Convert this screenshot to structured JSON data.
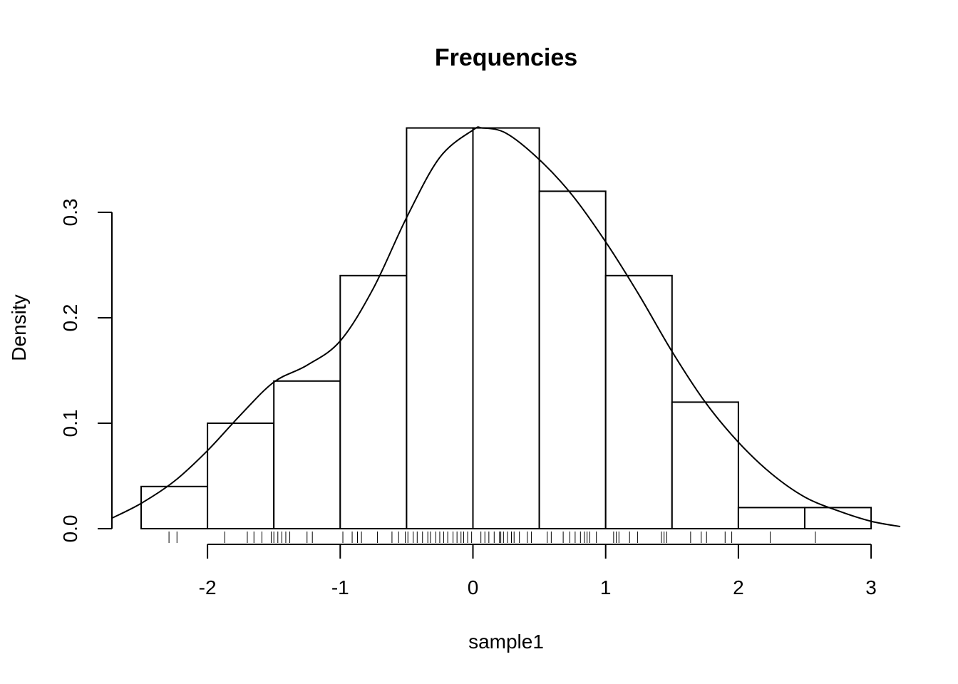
{
  "chart_data": {
    "type": "histogram",
    "title": "Frequencies",
    "xlabel": "sample1",
    "ylabel": "Density",
    "xlim": [
      -2.72,
      3.22
    ],
    "ylim": [
      0,
      0.38
    ],
    "x_ticks": [
      -2,
      -1,
      0,
      1,
      2,
      3
    ],
    "x_tick_labels": [
      "-2",
      "-1",
      "0",
      "1",
      "2",
      "3"
    ],
    "y_ticks": [
      0.0,
      0.1,
      0.2,
      0.3
    ],
    "y_tick_labels": [
      "0.0",
      "0.1",
      "0.2",
      "0.3"
    ],
    "bins": [
      {
        "x0": -2.5,
        "x1": -2.0,
        "density": 0.04
      },
      {
        "x0": -2.0,
        "x1": -1.5,
        "density": 0.1
      },
      {
        "x0": -1.5,
        "x1": -1.0,
        "density": 0.14
      },
      {
        "x0": -1.0,
        "x1": -0.5,
        "density": 0.24
      },
      {
        "x0": -0.5,
        "x1": 0.0,
        "density": 0.38
      },
      {
        "x0": 0.0,
        "x1": 0.5,
        "density": 0.38
      },
      {
        "x0": 0.5,
        "x1": 1.0,
        "density": 0.32
      },
      {
        "x0": 1.0,
        "x1": 1.5,
        "density": 0.24
      },
      {
        "x0": 1.5,
        "x1": 2.0,
        "density": 0.12
      },
      {
        "x0": 2.0,
        "x1": 2.5,
        "density": 0.02
      },
      {
        "x0": 2.5,
        "x1": 3.0,
        "density": 0.02
      }
    ],
    "density_curve": {
      "x": [
        -2.72,
        -2.5,
        -2.25,
        -2.0,
        -1.75,
        -1.5,
        -1.25,
        -1.0,
        -0.75,
        -0.5,
        -0.25,
        0.0,
        0.07,
        0.25,
        0.5,
        0.75,
        1.0,
        1.25,
        1.5,
        1.75,
        2.0,
        2.25,
        2.5,
        2.75,
        3.0,
        3.22
      ],
      "y": [
        0.01,
        0.024,
        0.045,
        0.074,
        0.108,
        0.139,
        0.155,
        0.178,
        0.228,
        0.295,
        0.352,
        0.378,
        0.38,
        0.375,
        0.35,
        0.316,
        0.272,
        0.222,
        0.168,
        0.12,
        0.082,
        0.052,
        0.03,
        0.017,
        0.007,
        0.002
      ]
    },
    "rug": [
      -2.29,
      -2.23,
      -1.87,
      -1.7,
      -1.65,
      -1.59,
      -1.52,
      -1.5,
      -1.47,
      -1.44,
      -1.41,
      -1.38,
      -1.25,
      -1.21,
      -0.98,
      -0.91,
      -0.87,
      -0.84,
      -0.72,
      -0.61,
      -0.56,
      -0.51,
      -0.49,
      -0.45,
      -0.42,
      -0.38,
      -0.34,
      -0.32,
      -0.28,
      -0.25,
      -0.22,
      -0.19,
      -0.15,
      -0.12,
      -0.09,
      -0.07,
      -0.04,
      -0.01,
      0.06,
      0.09,
      0.12,
      0.16,
      0.2,
      0.21,
      0.23,
      0.26,
      0.29,
      0.31,
      0.35,
      0.41,
      0.44,
      0.56,
      0.59,
      0.68,
      0.73,
      0.77,
      0.81,
      0.84,
      0.86,
      0.88,
      0.93,
      1.06,
      1.08,
      1.1,
      1.18,
      1.24,
      1.42,
      1.44,
      1.46,
      1.64,
      1.72,
      1.76,
      1.9,
      1.95,
      2.24,
      2.58
    ]
  }
}
